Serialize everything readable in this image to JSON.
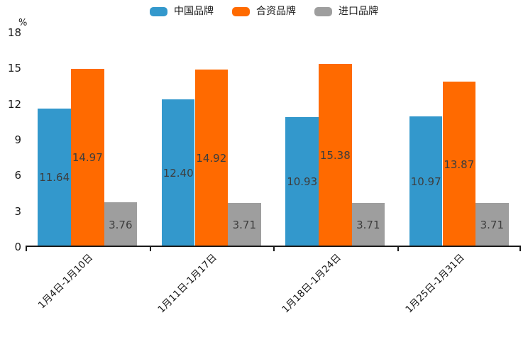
{
  "chart_data": {
    "type": "bar",
    "title": "",
    "unit_label": "%",
    "categories": [
      "1月4日-1月10日",
      "1月11日-1月17日",
      "1月18日-1月24日",
      "1月25日-1月31日"
    ],
    "series": [
      {
        "name": "中国品牌",
        "color": "#3398cc",
        "values": [
          11.64,
          12.4,
          10.93,
          10.97
        ]
      },
      {
        "name": "合资品牌",
        "color": "#ff6a00",
        "values": [
          14.97,
          14.92,
          15.38,
          13.87
        ]
      },
      {
        "name": "进口品牌",
        "color": "#9e9e9e",
        "values": [
          3.76,
          3.71,
          3.71,
          3.71
        ]
      }
    ],
    "value_labels_decimals": 2,
    "yticks": [
      0,
      3,
      6,
      9,
      12,
      15,
      18
    ],
    "ylim": [
      0,
      18
    ],
    "grid": false,
    "legend_position": "top",
    "axis_color": "#1a1a1a",
    "value_label_color": "#3d3d3d"
  }
}
